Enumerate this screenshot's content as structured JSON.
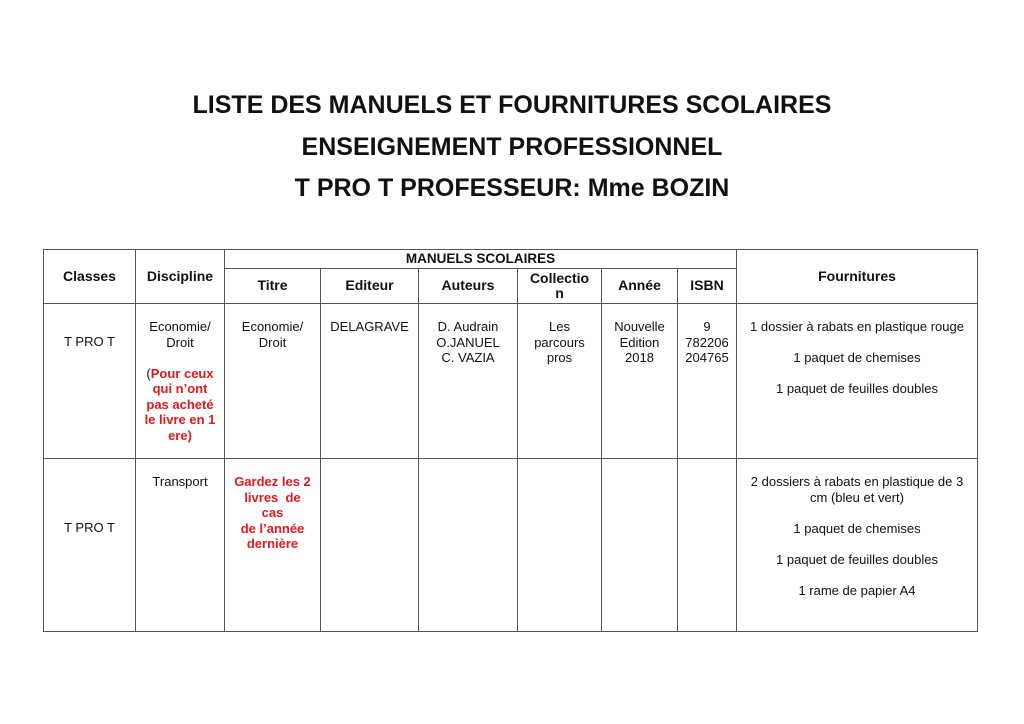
{
  "title": {
    "line1": "LISTE DES MANUELS ET FOURNITURES SCOLAIRES",
    "line2": "ENSEIGNEMENT PROFESSIONNEL",
    "line3": "T PRO T PROFESSEUR: Mme BOZIN"
  },
  "table": {
    "headers": {
      "classes": "Classes",
      "discipline": "Discipline",
      "manuels": "MANUELS SCOLAIRES",
      "titre": "Titre",
      "editeur": "Editeur",
      "auteurs": "Auteurs",
      "collection": [
        "Collectio",
        "n"
      ],
      "annee": "Année",
      "isbn": "ISBN",
      "fournitures": "Fournitures"
    },
    "rows": [
      {
        "classe": "T PRO T",
        "discipline": [
          "Economie/",
          "Droit"
        ],
        "discipline_note_paren": "(",
        "discipline_note": [
          "Pour ceux",
          "qui n’ont",
          "pas acheté",
          "le livre en 1",
          "ere)"
        ],
        "titre": [
          "Economie/",
          "Droit"
        ],
        "editeur": "DELAGRAVE",
        "auteurs": [
          "D. Audrain",
          "O.JANUEL",
          "C. VAZIA"
        ],
        "collection": [
          "Les",
          "parcours",
          "pros"
        ],
        "annee": [
          "Nouvelle",
          "Edition",
          "2018"
        ],
        "isbn": [
          "9",
          "782206",
          "204765"
        ],
        "fournitures": [
          "1 dossier à rabats en plastique rouge",
          "1 paquet de chemises",
          "1 paquet de feuilles doubles"
        ]
      },
      {
        "classe": "T PRO T",
        "discipline": [
          "Transport"
        ],
        "titre_note": [
          "Gardez les 2",
          "livres  de",
          "cas",
          "de l’année",
          "dernière"
        ],
        "fournitures": [
          [
            "2 dossiers à rabats en plastique de 3",
            "cm (bleu et vert)"
          ],
          "1 paquet de chemises",
          "1 paquet de feuilles doubles",
          "1 rame de papier A4"
        ]
      }
    ]
  },
  "colors": {
    "note_red": "#e0191e",
    "border": "#555555"
  }
}
